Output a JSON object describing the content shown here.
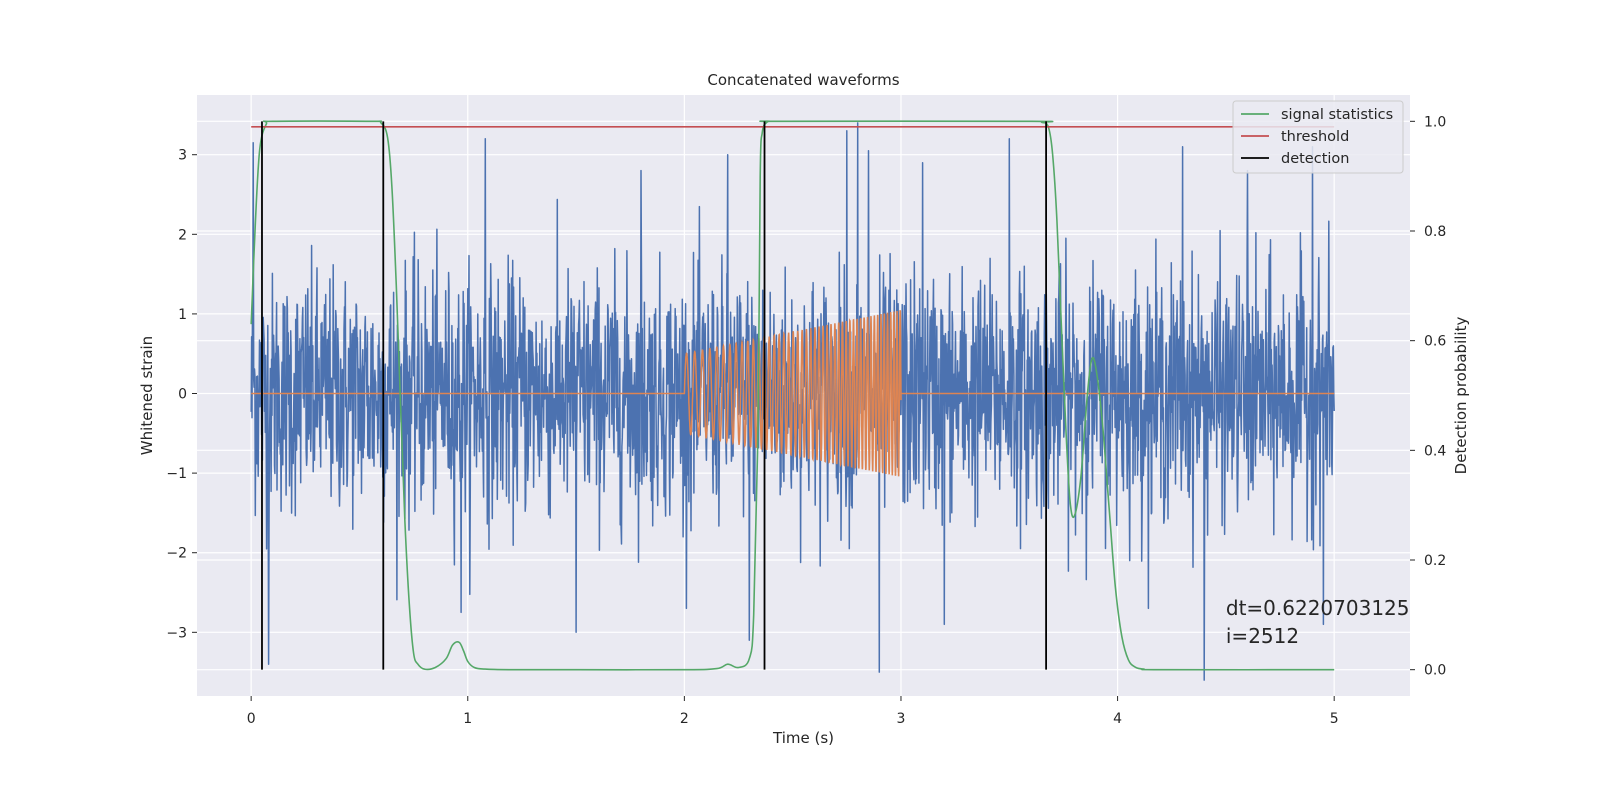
{
  "chart_data": {
    "type": "line",
    "title": "Concatenated waveforms",
    "xlabel": "Time (s)",
    "ylabel": "Whitened strain",
    "ylabel_right": "Detection probability",
    "xlim": [
      -0.25,
      5.35
    ],
    "ylim": [
      -3.8,
      3.75
    ],
    "ylim_right": [
      -0.048,
      1.048
    ],
    "xticks": [
      0,
      1,
      2,
      3,
      4,
      5
    ],
    "xtick_labels": [
      "0",
      "1",
      "2",
      "3",
      "4",
      "5"
    ],
    "yticks": [
      -3,
      -2,
      -1,
      0,
      1,
      2,
      3
    ],
    "ytick_labels": [
      "−3",
      "−2",
      "−1",
      "0",
      "1",
      "2",
      "3"
    ],
    "yticks_right": [
      0.0,
      0.2,
      0.4,
      0.6,
      0.8,
      1.0
    ],
    "ytick_labels_right": [
      "0.0",
      "0.2",
      "0.4",
      "0.6",
      "0.8",
      "1.0"
    ],
    "grid": true,
    "legend_position": "top-right",
    "series": [
      {
        "kind": "noise",
        "axis": "left",
        "color": "#4c72b0",
        "x_range": [
          0,
          5
        ],
        "typical_amplitude": 1.2,
        "peak_samples": [
          [
            0.01,
            3.15
          ],
          [
            0.08,
            -3.4
          ],
          [
            0.97,
            -2.75
          ],
          [
            1.08,
            3.2
          ],
          [
            1.5,
            -3.0
          ],
          [
            1.8,
            2.8
          ],
          [
            2.2,
            3.0
          ],
          [
            2.3,
            -3.1
          ],
          [
            2.75,
            3.3
          ],
          [
            2.8,
            3.4
          ],
          [
            2.85,
            3.05
          ],
          [
            2.9,
            -3.5
          ],
          [
            3.1,
            2.9
          ],
          [
            3.2,
            -2.9
          ],
          [
            3.5,
            3.2
          ],
          [
            4.3,
            3.1
          ],
          [
            4.4,
            -3.6
          ],
          [
            4.6,
            2.8
          ],
          [
            4.9,
            3.1
          ],
          [
            4.95,
            -2.9
          ]
        ]
      },
      {
        "kind": "chirp",
        "axis": "left",
        "color": "#dd8452",
        "x_range": [
          0,
          5
        ],
        "active_range": [
          2.0,
          3.0
        ],
        "amplitude_start": 0.5,
        "amplitude_end": 1.05,
        "frequency_start_hz": 25,
        "frequency_end_hz": 70
      },
      {
        "name": "signal statistics",
        "axis": "right",
        "color": "#55a868",
        "x": [
          0,
          0.02,
          0.04,
          0.07,
          0.1,
          0.55,
          0.6,
          0.63,
          0.65,
          0.67,
          0.69,
          0.71,
          0.73,
          0.75,
          0.77,
          0.8,
          0.85,
          0.9,
          0.93,
          0.96,
          0.98,
          1.0,
          1.03,
          1.08,
          1.2,
          1.5,
          2.0,
          2.15,
          2.2,
          2.25,
          2.3,
          2.32,
          2.34,
          2.35,
          2.36,
          2.38,
          2.4,
          2.45,
          3.6,
          3.65,
          3.68,
          3.7,
          3.72,
          3.74,
          3.76,
          3.78,
          3.8,
          3.83,
          3.86,
          3.88,
          3.9,
          3.93,
          3.96,
          3.99,
          4.02,
          4.05,
          4.08,
          4.12,
          4.2,
          5.0
        ],
        "values": [
          0.63,
          0.82,
          0.95,
          0.995,
          1.0,
          1.0,
          0.997,
          0.97,
          0.88,
          0.7,
          0.48,
          0.27,
          0.12,
          0.03,
          0.01,
          0.001,
          0.004,
          0.02,
          0.045,
          0.05,
          0.035,
          0.015,
          0.004,
          0.001,
          0.0,
          0.0,
          0.0,
          0.002,
          0.01,
          0.004,
          0.02,
          0.1,
          0.45,
          0.9,
          0.98,
          0.998,
          1.0,
          1.0,
          1.0,
          0.998,
          0.99,
          0.94,
          0.82,
          0.63,
          0.45,
          0.31,
          0.28,
          0.35,
          0.5,
          0.565,
          0.55,
          0.45,
          0.3,
          0.15,
          0.06,
          0.018,
          0.005,
          0.001,
          0.0,
          0.0
        ]
      },
      {
        "name": "threshold",
        "axis": "right",
        "color": "#c44e52",
        "x": [
          0,
          5
        ],
        "values": [
          0.99,
          0.99
        ]
      },
      {
        "name": "detection",
        "axis": "right",
        "color": "#000000",
        "kind": "vlines",
        "x": [
          0.05,
          0.61,
          2.37,
          3.67
        ],
        "range": [
          0.0,
          1.0
        ]
      }
    ],
    "annotation": {
      "lines": [
        "dt=0.6220703125",
        " i=2512"
      ],
      "x": 4.5,
      "y": -2.78
    }
  }
}
